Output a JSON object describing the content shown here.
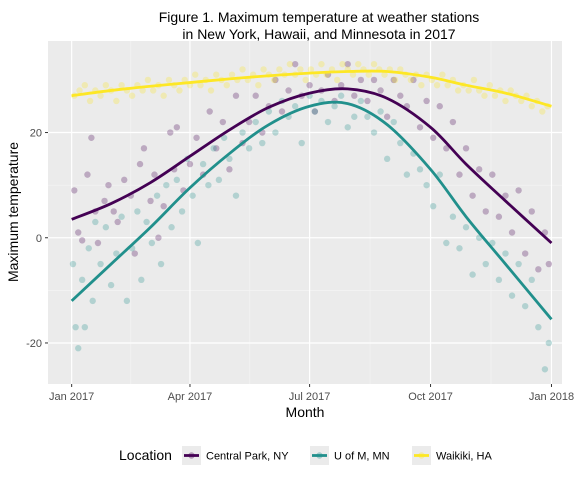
{
  "chart_data": {
    "type": "scatter",
    "title_lines": [
      "Figure 1. Maximum temperature at weather stations",
      "in New York, Hawaii, and Minnesota in 2017"
    ],
    "xlabel": "Month",
    "ylabel": "Maximum temperature",
    "x_ticks": [
      {
        "label": "Jan 2017",
        "day": 0
      },
      {
        "label": "Apr 2017",
        "day": 90
      },
      {
        "label": "Jul 2017",
        "day": 181
      },
      {
        "label": "Oct 2017",
        "day": 273
      },
      {
        "label": "Jan 2018",
        "day": 365
      }
    ],
    "y_ticks": [
      -20,
      0,
      20
    ],
    "xlim_days": [
      -18,
      373
    ],
    "ylim": [
      -27.8,
      37.4
    ],
    "grid": true,
    "legend": {
      "title": "Location",
      "position": "bottom"
    },
    "series": [
      {
        "name": "Central Park, NY",
        "color": "#440154",
        "trend": [
          [
            0,
            3.5
          ],
          [
            30,
            6.5
          ],
          [
            60,
            10.5
          ],
          [
            90,
            15.5
          ],
          [
            120,
            20.5
          ],
          [
            150,
            24.8
          ],
          [
            181,
            27.5
          ],
          [
            210,
            28.3
          ],
          [
            240,
            26.5
          ],
          [
            273,
            21
          ],
          [
            300,
            14
          ],
          [
            330,
            7
          ],
          [
            365,
            -1
          ]
        ],
        "points": [
          [
            2,
            9
          ],
          [
            5,
            1
          ],
          [
            8,
            -0.5
          ],
          [
            12,
            12
          ],
          [
            15,
            19
          ],
          [
            18,
            5
          ],
          [
            20,
            -1
          ],
          [
            25,
            7
          ],
          [
            28,
            10
          ],
          [
            32,
            5
          ],
          [
            35,
            3
          ],
          [
            40,
            11
          ],
          [
            45,
            8
          ],
          [
            48,
            -3
          ],
          [
            52,
            14
          ],
          [
            55,
            17
          ],
          [
            60,
            7
          ],
          [
            63,
            12
          ],
          [
            66,
            0
          ],
          [
            70,
            6
          ],
          [
            75,
            20
          ],
          [
            78,
            13
          ],
          [
            80,
            21
          ],
          [
            85,
            9
          ],
          [
            90,
            14
          ],
          [
            95,
            19
          ],
          [
            100,
            12
          ],
          [
            105,
            24
          ],
          [
            110,
            17
          ],
          [
            115,
            22
          ],
          [
            120,
            13
          ],
          [
            125,
            27
          ],
          [
            130,
            18
          ],
          [
            135,
            22
          ],
          [
            140,
            27
          ],
          [
            145,
            20
          ],
          [
            150,
            25
          ],
          [
            155,
            30
          ],
          [
            160,
            24
          ],
          [
            165,
            28
          ],
          [
            170,
            33
          ],
          [
            175,
            27
          ],
          [
            181,
            29
          ],
          [
            185,
            24
          ],
          [
            190,
            28
          ],
          [
            195,
            31
          ],
          [
            200,
            26
          ],
          [
            205,
            29
          ],
          [
            210,
            33
          ],
          [
            215,
            27
          ],
          [
            220,
            30
          ],
          [
            225,
            26
          ],
          [
            230,
            30
          ],
          [
            235,
            28
          ],
          [
            240,
            23
          ],
          [
            245,
            30
          ],
          [
            250,
            27
          ],
          [
            255,
            25
          ],
          [
            260,
            30
          ],
          [
            265,
            21
          ],
          [
            270,
            26
          ],
          [
            275,
            19
          ],
          [
            280,
            25
          ],
          [
            285,
            17
          ],
          [
            290,
            22
          ],
          [
            295,
            12
          ],
          [
            300,
            17
          ],
          [
            305,
            8
          ],
          [
            310,
            13
          ],
          [
            315,
            5
          ],
          [
            320,
            12
          ],
          [
            325,
            4
          ],
          [
            330,
            8
          ],
          [
            335,
            1
          ],
          [
            340,
            9
          ],
          [
            345,
            -3
          ],
          [
            350,
            5
          ],
          [
            355,
            -6
          ],
          [
            360,
            1
          ],
          [
            363,
            -5
          ]
        ]
      },
      {
        "name": "U of M, MN",
        "color": "#21908c",
        "trend": [
          [
            0,
            -12
          ],
          [
            30,
            -5
          ],
          [
            60,
            2
          ],
          [
            90,
            9.5
          ],
          [
            120,
            16
          ],
          [
            150,
            21.5
          ],
          [
            181,
            25
          ],
          [
            210,
            25.5
          ],
          [
            240,
            21.5
          ],
          [
            273,
            13
          ],
          [
            300,
            4
          ],
          [
            330,
            -5
          ],
          [
            365,
            -15.5
          ]
        ],
        "points": [
          [
            1,
            -5
          ],
          [
            3,
            -17
          ],
          [
            5,
            -21
          ],
          [
            8,
            -8
          ],
          [
            10,
            -17
          ],
          [
            13,
            -2
          ],
          [
            16,
            -12
          ],
          [
            18,
            3
          ],
          [
            22,
            -5
          ],
          [
            26,
            2
          ],
          [
            30,
            -9
          ],
          [
            34,
            -3
          ],
          [
            38,
            4
          ],
          [
            42,
            -12
          ],
          [
            46,
            -2
          ],
          [
            50,
            5
          ],
          [
            53,
            -8
          ],
          [
            57,
            3
          ],
          [
            61,
            -1
          ],
          [
            65,
            8
          ],
          [
            68,
            -5
          ],
          [
            72,
            10
          ],
          [
            76,
            2
          ],
          [
            80,
            11
          ],
          [
            84,
            5
          ],
          [
            88,
            15
          ],
          [
            92,
            8
          ],
          [
            96,
            -1
          ],
          [
            100,
            14
          ],
          [
            104,
            10
          ],
          [
            108,
            17
          ],
          [
            112,
            11
          ],
          [
            116,
            19
          ],
          [
            120,
            15
          ],
          [
            125,
            8
          ],
          [
            130,
            20
          ],
          [
            135,
            17
          ],
          [
            140,
            22
          ],
          [
            145,
            18
          ],
          [
            150,
            24
          ],
          [
            155,
            20
          ],
          [
            160,
            26
          ],
          [
            165,
            23
          ],
          [
            170,
            25
          ],
          [
            175,
            18
          ],
          [
            181,
            27
          ],
          [
            185,
            24
          ],
          [
            190,
            26
          ],
          [
            195,
            22
          ],
          [
            200,
            25
          ],
          [
            205,
            27
          ],
          [
            210,
            21
          ],
          [
            215,
            23
          ],
          [
            220,
            26
          ],
          [
            225,
            23
          ],
          [
            230,
            20
          ],
          [
            235,
            24
          ],
          [
            240,
            15
          ],
          [
            245,
            22
          ],
          [
            250,
            18
          ],
          [
            255,
            12
          ],
          [
            260,
            16
          ],
          [
            265,
            13
          ],
          [
            270,
            10
          ],
          [
            275,
            6
          ],
          [
            280,
            12
          ],
          [
            285,
            -1
          ],
          [
            290,
            4
          ],
          [
            295,
            -2
          ],
          [
            300,
            2
          ],
          [
            305,
            -7
          ],
          [
            310,
            0
          ],
          [
            315,
            -5
          ],
          [
            320,
            -1
          ],
          [
            325,
            -8
          ],
          [
            330,
            -3
          ],
          [
            335,
            -11
          ],
          [
            340,
            -5
          ],
          [
            345,
            -13
          ],
          [
            350,
            -8
          ],
          [
            355,
            -17
          ],
          [
            360,
            -25
          ],
          [
            363,
            -20
          ]
        ]
      },
      {
        "name": "Waikiki, HA",
        "color": "#fde725",
        "trend": [
          [
            0,
            27
          ],
          [
            30,
            28
          ],
          [
            60,
            28.8
          ],
          [
            90,
            29.5
          ],
          [
            120,
            30.2
          ],
          [
            150,
            30.8
          ],
          [
            181,
            31.3
          ],
          [
            210,
            31.6
          ],
          [
            240,
            31.6
          ],
          [
            273,
            30.5
          ],
          [
            300,
            29
          ],
          [
            330,
            27.5
          ],
          [
            365,
            25
          ]
        ],
        "points": [
          [
            2,
            27
          ],
          [
            6,
            28
          ],
          [
            10,
            29
          ],
          [
            14,
            26
          ],
          [
            18,
            28
          ],
          [
            22,
            27
          ],
          [
            26,
            29
          ],
          [
            30,
            28
          ],
          [
            34,
            26
          ],
          [
            38,
            29
          ],
          [
            42,
            28
          ],
          [
            46,
            27
          ],
          [
            50,
            29
          ],
          [
            54,
            28
          ],
          [
            58,
            30
          ],
          [
            62,
            28
          ],
          [
            66,
            29
          ],
          [
            70,
            27
          ],
          [
            74,
            30
          ],
          [
            78,
            29
          ],
          [
            82,
            28
          ],
          [
            86,
            30
          ],
          [
            90,
            29
          ],
          [
            94,
            31
          ],
          [
            98,
            29
          ],
          [
            102,
            30
          ],
          [
            106,
            28
          ],
          [
            110,
            31
          ],
          [
            114,
            30
          ],
          [
            118,
            29
          ],
          [
            122,
            31
          ],
          [
            126,
            30
          ],
          [
            130,
            32
          ],
          [
            134,
            30
          ],
          [
            138,
            31
          ],
          [
            142,
            29
          ],
          [
            146,
            32
          ],
          [
            150,
            31
          ],
          [
            154,
            30
          ],
          [
            158,
            32
          ],
          [
            162,
            31
          ],
          [
            166,
            33
          ],
          [
            170,
            31
          ],
          [
            174,
            32
          ],
          [
            178,
            30
          ],
          [
            182,
            32
          ],
          [
            186,
            31
          ],
          [
            190,
            33
          ],
          [
            194,
            31
          ],
          [
            198,
            32
          ],
          [
            202,
            30
          ],
          [
            206,
            33
          ],
          [
            210,
            32
          ],
          [
            214,
            31
          ],
          [
            218,
            33
          ],
          [
            222,
            32
          ],
          [
            226,
            31
          ],
          [
            230,
            33
          ],
          [
            234,
            32
          ],
          [
            238,
            31
          ],
          [
            242,
            32
          ],
          [
            246,
            30
          ],
          [
            250,
            32
          ],
          [
            254,
            31
          ],
          [
            258,
            30
          ],
          [
            262,
            31
          ],
          [
            266,
            29
          ],
          [
            270,
            31
          ],
          [
            274,
            30
          ],
          [
            278,
            29
          ],
          [
            282,
            31
          ],
          [
            286,
            29
          ],
          [
            290,
            30
          ],
          [
            294,
            28
          ],
          [
            298,
            29
          ],
          [
            302,
            28
          ],
          [
            306,
            30
          ],
          [
            310,
            28
          ],
          [
            314,
            27
          ],
          [
            318,
            29
          ],
          [
            322,
            27
          ],
          [
            326,
            28
          ],
          [
            330,
            26
          ],
          [
            334,
            28
          ],
          [
            338,
            27
          ],
          [
            342,
            26
          ],
          [
            346,
            27
          ],
          [
            350,
            25
          ],
          [
            354,
            26
          ],
          [
            358,
            24
          ],
          [
            362,
            25
          ]
        ]
      }
    ]
  }
}
